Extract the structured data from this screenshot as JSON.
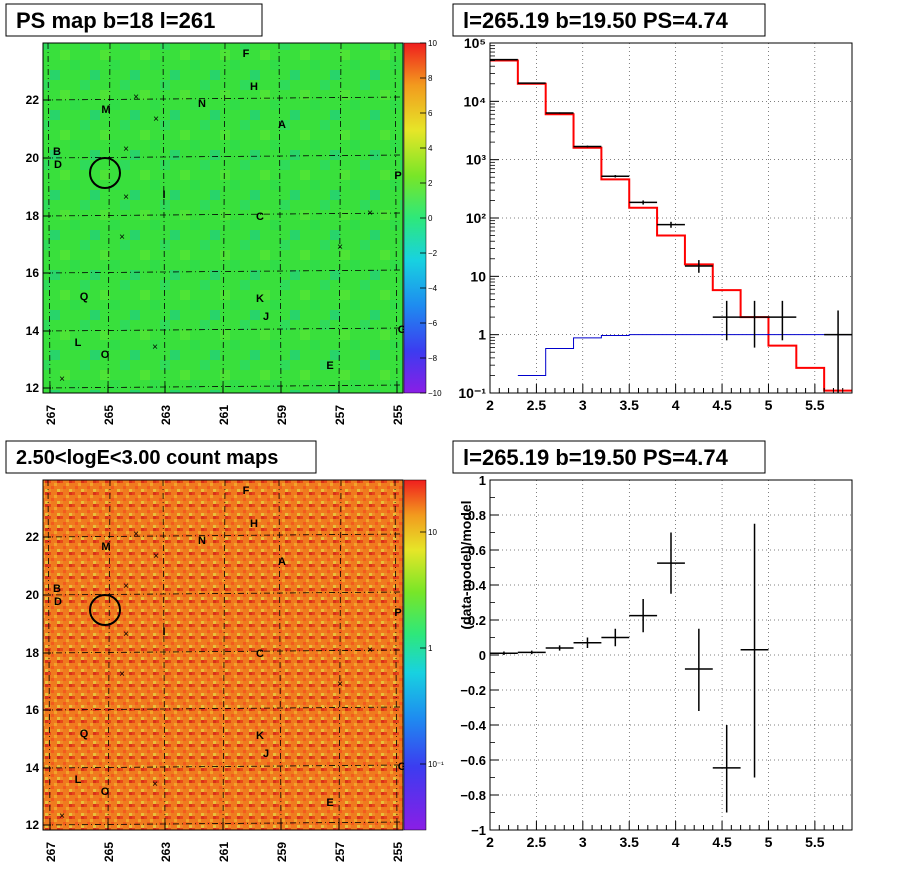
{
  "panels": {
    "ps_map": {
      "title": "PS map b=18 l=261",
      "x_ticks": [
        "267",
        "265",
        "263",
        "261",
        "259",
        "257",
        "255"
      ],
      "y_ticks": [
        "12",
        "14",
        "16",
        "18",
        "20",
        "22"
      ],
      "colorbar_ticks": [
        "10",
        "8",
        "6",
        "4",
        "2",
        "0",
        "−2",
        "−4",
        "−6",
        "−8",
        "−10"
      ]
    },
    "count_map": {
      "title": "2.50<logE<3.00 count maps",
      "x_ticks": [
        "267",
        "265",
        "263",
        "261",
        "259",
        "257",
        "255"
      ],
      "y_ticks": [
        "12",
        "14",
        "16",
        "18",
        "20",
        "22"
      ],
      "colorbar_ticks": [
        "10",
        "1",
        "10⁻¹"
      ]
    },
    "spectrum": {
      "title": "l=265.19 b=19.50 PS=4.74"
    },
    "residual": {
      "title": "l=265.19 b=19.50 PS=4.74"
    }
  },
  "map_labels": [
    "F",
    "H",
    "N",
    "M",
    "A",
    "B",
    "D",
    "P",
    "I",
    "C",
    "Q",
    "K",
    "J",
    "G",
    "L",
    "O",
    "E"
  ],
  "colors": {
    "ps_map_bg": "#33e040",
    "count_map_bg": "#f27a20",
    "model": "#ff0000",
    "background_model": "#0000cc",
    "data": "#000000"
  },
  "chart_data": [
    {
      "type": "line",
      "title": "l=265.19 b=19.50 PS=4.74",
      "y_scale": "log",
      "xlim": [
        2.0,
        5.9
      ],
      "ylim": [
        0.1,
        100000
      ],
      "grid": true,
      "x_ticks": [
        "2",
        "2.5",
        "3",
        "3.5",
        "4",
        "4.5",
        "5",
        "5.5"
      ],
      "y_ticks": [
        "10⁻¹",
        "1",
        "10",
        "10²",
        "10³",
        "10⁴",
        "10⁵"
      ],
      "series": [
        {
          "style": "step",
          "color": "#ff0000",
          "bin_edges": [
            2.0,
            2.3,
            2.6,
            2.9,
            3.2,
            3.5,
            3.8,
            4.1,
            4.4,
            4.7,
            5.0,
            5.3,
            5.6,
            5.9
          ],
          "values": [
            50000,
            20000,
            6000,
            1600,
            460,
            150,
            50,
            16,
            5.8,
            2.0,
            0.65,
            0.27,
            0.11
          ]
        },
        {
          "style": "step",
          "color": "#0000cc",
          "bin_edges": [
            2.3,
            2.6,
            2.9,
            3.2,
            3.5,
            3.8,
            4.1,
            4.4,
            4.7,
            5.0,
            5.3,
            5.6,
            5.9
          ],
          "values": [
            0.2,
            0.58,
            0.88,
            0.97,
            1.0,
            1.0,
            1.0,
            1.0,
            1.0,
            1.0,
            1.0,
            1.0
          ]
        },
        {
          "style": "errorbars",
          "color": "#000000",
          "points": [
            {
              "x": 2.15,
              "y": 52000,
              "xerr": 0.15,
              "ylo": 51500,
              "yhi": 52500
            },
            {
              "x": 2.45,
              "y": 20500,
              "xerr": 0.15,
              "ylo": 20300,
              "yhi": 20700
            },
            {
              "x": 2.75,
              "y": 6300,
              "xerr": 0.15,
              "ylo": 6150,
              "yhi": 6450
            },
            {
              "x": 3.05,
              "y": 1680,
              "xerr": 0.15,
              "ylo": 1620,
              "yhi": 1740
            },
            {
              "x": 3.35,
              "y": 520,
              "xerr": 0.15,
              "ylo": 495,
              "yhi": 545
            },
            {
              "x": 3.65,
              "y": 185,
              "xerr": 0.15,
              "ylo": 170,
              "yhi": 200
            },
            {
              "x": 3.95,
              "y": 77,
              "xerr": 0.15,
              "ylo": 68,
              "yhi": 86
            },
            {
              "x": 4.25,
              "y": 15,
              "xerr": 0.15,
              "ylo": 11.5,
              "yhi": 19
            },
            {
              "x": 4.55,
              "y": 2.0,
              "xerr": 0.15,
              "ylo": 0.8,
              "yhi": 3.8
            },
            {
              "x": 4.85,
              "y": 2.0,
              "xerr": 0.15,
              "ylo": 0.6,
              "yhi": 3.8
            },
            {
              "x": 5.15,
              "y": 2.0,
              "xerr": 0.15,
              "ylo": 0.8,
              "yhi": 3.8
            },
            {
              "x": 5.75,
              "y": 1.0,
              "xerr": 0.15,
              "ylo": 0.1,
              "yhi": 2.6
            }
          ]
        }
      ]
    },
    {
      "type": "scatter",
      "title": "l=265.19 b=19.50 PS=4.74",
      "ylabel": "(data-model)/model",
      "xlim": [
        2.0,
        5.9
      ],
      "ylim": [
        -1,
        1
      ],
      "grid": true,
      "x_ticks": [
        "2",
        "2.5",
        "3",
        "3.5",
        "4",
        "4.5",
        "5",
        "5.5"
      ],
      "y_ticks": [
        "−1",
        "−0.8",
        "−0.6",
        "−0.4",
        "−0.2",
        "0",
        "0.2",
        "0.4",
        "0.6",
        "0.8",
        "1"
      ],
      "points": [
        {
          "x": 2.15,
          "y": 0.01,
          "xerr": 0.15,
          "ylo": 0.0,
          "yhi": 0.02
        },
        {
          "x": 2.45,
          "y": 0.015,
          "xerr": 0.15,
          "ylo": 0.005,
          "yhi": 0.025
        },
        {
          "x": 2.75,
          "y": 0.04,
          "xerr": 0.15,
          "ylo": 0.025,
          "yhi": 0.055
        },
        {
          "x": 3.05,
          "y": 0.07,
          "xerr": 0.15,
          "ylo": 0.04,
          "yhi": 0.1
        },
        {
          "x": 3.35,
          "y": 0.1,
          "xerr": 0.15,
          "ylo": 0.05,
          "yhi": 0.15
        },
        {
          "x": 3.65,
          "y": 0.225,
          "xerr": 0.15,
          "ylo": 0.13,
          "yhi": 0.32
        },
        {
          "x": 3.95,
          "y": 0.525,
          "xerr": 0.15,
          "ylo": 0.35,
          "yhi": 0.7
        },
        {
          "x": 4.25,
          "y": -0.08,
          "xerr": 0.15,
          "ylo": -0.32,
          "yhi": 0.15
        },
        {
          "x": 4.55,
          "y": -0.645,
          "xerr": 0.15,
          "ylo": -0.9,
          "yhi": -0.4
        },
        {
          "x": 4.85,
          "y": 0.03,
          "xerr": 0.15,
          "ylo": -0.7,
          "yhi": 0.75
        }
      ]
    }
  ]
}
